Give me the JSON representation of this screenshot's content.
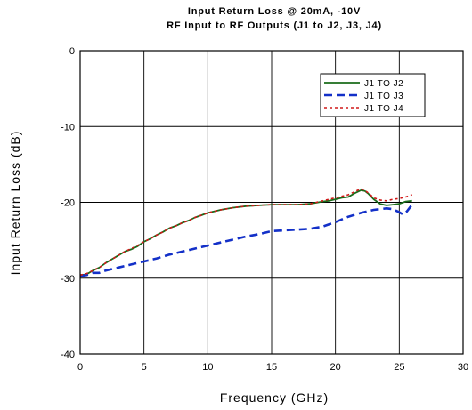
{
  "chart_data": {
    "type": "line",
    "title": "Input Return Loss @ 20mA, -10V",
    "subtitle": "RF Input to RF Outputs (J1 to J2, J3, J4)",
    "xlabel": "Frequency (GHz)",
    "ylabel": "Input Return Loss (dB)",
    "xlim": [
      0,
      30
    ],
    "ylim": [
      -40,
      0
    ],
    "xticks": [
      "0",
      "5",
      "10",
      "15",
      "20",
      "25",
      "30"
    ],
    "yticks": [
      "0",
      "-10",
      "-20",
      "-30",
      "-40"
    ],
    "grid": true,
    "legend_position": "top-right",
    "series": [
      {
        "name": "J1 TO J2",
        "color": "#1a6b1a",
        "style": "solid",
        "x": [
          0,
          0.5,
          1,
          1.5,
          2,
          2.5,
          3,
          3.5,
          4,
          4.5,
          5,
          5.5,
          6,
          6.5,
          7,
          7.5,
          8,
          8.5,
          9,
          9.5,
          10,
          11,
          12,
          13,
          14,
          15,
          16,
          17,
          18,
          19,
          19.5,
          20,
          20.5,
          21,
          21.5,
          22,
          22.3,
          22.6,
          23,
          23.5,
          24,
          24.5,
          25,
          25.5,
          26
        ],
        "y": [
          -29.6,
          -29.5,
          -29.0,
          -28.6,
          -28.0,
          -27.5,
          -27.0,
          -26.5,
          -26.2,
          -25.8,
          -25.2,
          -24.8,
          -24.3,
          -23.9,
          -23.4,
          -23.1,
          -22.7,
          -22.4,
          -22.0,
          -21.7,
          -21.4,
          -21.0,
          -20.7,
          -20.5,
          -20.4,
          -20.3,
          -20.3,
          -20.3,
          -20.2,
          -19.9,
          -19.8,
          -19.6,
          -19.4,
          -19.3,
          -18.8,
          -18.4,
          -18.5,
          -18.9,
          -19.6,
          -20.2,
          -20.4,
          -20.3,
          -20.2,
          -19.9,
          -19.8
        ]
      },
      {
        "name": "J1 TO J3",
        "color": "#1330c8",
        "style": "dashed",
        "x": [
          0,
          0.5,
          1,
          1.5,
          2,
          3,
          4,
          5,
          6,
          7,
          8,
          9,
          10,
          11,
          12,
          13,
          14,
          15,
          16,
          17,
          18,
          19,
          20,
          21,
          22,
          23,
          24,
          24.5,
          25,
          25.3,
          25.6,
          26
        ],
        "y": [
          -29.7,
          -29.6,
          -29.3,
          -29.3,
          -29.0,
          -28.6,
          -28.2,
          -27.8,
          -27.4,
          -26.9,
          -26.5,
          -26.1,
          -25.7,
          -25.3,
          -24.9,
          -24.5,
          -24.2,
          -23.8,
          -23.7,
          -23.6,
          -23.5,
          -23.2,
          -22.6,
          -21.9,
          -21.4,
          -21.0,
          -20.8,
          -20.9,
          -21.3,
          -21.6,
          -21.2,
          -20.3
        ]
      },
      {
        "name": "J1 TO J4",
        "color": "#d01818",
        "style": "dotted",
        "x": [
          0,
          0.5,
          1,
          1.5,
          2,
          2.5,
          3,
          3.5,
          4,
          4.5,
          5,
          5.5,
          6,
          6.5,
          7,
          7.5,
          8,
          8.5,
          9,
          9.5,
          10,
          11,
          12,
          13,
          14,
          15,
          16,
          17,
          18,
          19,
          19.5,
          20,
          20.5,
          21,
          21.5,
          22,
          22.3,
          22.6,
          23,
          23.5,
          24,
          24.5,
          25,
          25.5,
          26
        ],
        "y": [
          -29.6,
          -29.4,
          -29.0,
          -28.6,
          -28.0,
          -27.5,
          -27.0,
          -26.5,
          -26.1,
          -25.7,
          -25.2,
          -24.8,
          -24.3,
          -23.9,
          -23.4,
          -23.1,
          -22.7,
          -22.4,
          -22.0,
          -21.7,
          -21.4,
          -21.0,
          -20.7,
          -20.5,
          -20.4,
          -20.3,
          -20.3,
          -20.3,
          -20.2,
          -19.8,
          -19.6,
          -19.4,
          -19.2,
          -19.0,
          -18.6,
          -18.2,
          -18.4,
          -18.8,
          -19.4,
          -19.7,
          -19.8,
          -19.6,
          -19.5,
          -19.3,
          -19.0
        ]
      }
    ]
  }
}
